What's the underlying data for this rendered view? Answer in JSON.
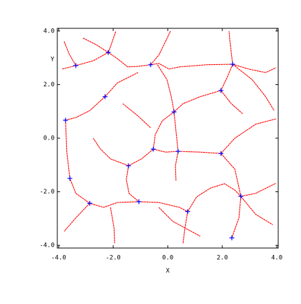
{
  "chart_data": {
    "type": "line",
    "x_label": "X",
    "y_label": "Y",
    "xlim": [
      -4.05,
      4.05
    ],
    "ylim": [
      -4.1,
      4.1
    ],
    "xticks": [
      {
        "value": -4,
        "label": "-4.0"
      },
      {
        "value": -2,
        "label": "-2.0"
      },
      {
        "value": 0,
        "label": "0.0"
      },
      {
        "value": 2,
        "label": "2.0"
      },
      {
        "value": 4,
        "label": "4.0"
      }
    ],
    "yticks": [
      {
        "value": -4,
        "label": "-4.0"
      },
      {
        "value": -2,
        "label": "-2.0"
      },
      {
        "value": 0,
        "label": "0.0"
      },
      {
        "value": 2,
        "label": "2.0"
      },
      {
        "value": 4,
        "label": "4.0"
      }
    ],
    "grid": false,
    "line_color": "#ff0000",
    "marker_color": "#0000ff",
    "curves": [
      {
        "x": [
          -3.8,
          -3.62,
          -3.37
        ],
        "y": [
          3.61,
          3.15,
          2.71
        ]
      },
      {
        "x": [
          -3.87,
          -3.37,
          -2.73,
          -2.18
        ],
        "y": [
          2.58,
          2.71,
          2.89,
          3.2
        ]
      },
      {
        "x": [
          -3.11,
          -2.61,
          -2.18
        ],
        "y": [
          3.74,
          3.48,
          3.2
        ]
      },
      {
        "x": [
          -2.18,
          -2.05,
          -1.9
        ],
        "y": [
          3.2,
          3.56,
          4.0
        ]
      },
      {
        "x": [
          -2.18,
          -1.85,
          -1.47,
          -1.09,
          -0.63
        ],
        "y": [
          3.2,
          2.97,
          2.66,
          2.68,
          2.74
        ]
      },
      {
        "x": [
          -0.63,
          -0.33,
          -0.08,
          0.1
        ],
        "y": [
          2.74,
          3.1,
          3.61,
          4.0
        ]
      },
      {
        "x": [
          -0.63,
          -0.33,
          0.05,
          0.43,
          1.44,
          2.38
        ],
        "y": [
          2.74,
          2.79,
          2.58,
          2.66,
          2.74,
          2.76
        ]
      },
      {
        "x": [
          2.38,
          2.28,
          2.25
        ],
        "y": [
          2.76,
          3.61,
          4.0
        ]
      },
      {
        "x": [
          2.38,
          2.96,
          3.59,
          3.97
        ],
        "y": [
          2.76,
          2.58,
          2.45,
          2.63
        ]
      },
      {
        "x": [
          2.38,
          2.2,
          1.95
        ],
        "y": [
          2.76,
          2.32,
          1.78
        ]
      },
      {
        "x": [
          2.38,
          3.09,
          3.59,
          3.9
        ],
        "y": [
          2.76,
          2.19,
          1.55,
          1.03
        ]
      },
      {
        "x": [
          1.95,
          1.19,
          0.56,
          0.23
        ],
        "y": [
          1.78,
          1.55,
          1.29,
          0.98
        ]
      },
      {
        "x": [
          1.95,
          2.33,
          2.76
        ],
        "y": [
          1.78,
          1.29,
          0.9
        ]
      },
      {
        "x": [
          -0.38,
          -0.03,
          0.13,
          0.23
        ],
        "y": [
          2.74,
          2.19,
          1.55,
          0.98
        ]
      },
      {
        "x": [
          0.23,
          -0.2,
          -0.46,
          -0.53
        ],
        "y": [
          0.98,
          0.65,
          0.13,
          -0.41
        ]
      },
      {
        "x": [
          0.23,
          0.3,
          0.38
        ],
        "y": [
          0.98,
          0.26,
          -0.49
        ]
      },
      {
        "x": [
          0.38,
          1.19,
          1.95
        ],
        "y": [
          -0.49,
          -0.52,
          -0.57
        ]
      },
      {
        "x": [
          -0.53,
          -0.08,
          0.38
        ],
        "y": [
          -0.41,
          -0.52,
          -0.49
        ]
      },
      {
        "x": [
          -0.53,
          -0.96,
          -1.44
        ],
        "y": [
          -0.41,
          -0.77,
          -1.03
        ]
      },
      {
        "x": [
          -1.44,
          -2.1,
          -2.48,
          -2.73
        ],
        "y": [
          -1.03,
          -0.77,
          -0.39,
          0
        ]
      },
      {
        "x": [
          -1.44,
          -1.52,
          -1.42,
          -1.06
        ],
        "y": [
          -1.03,
          -1.55,
          -2.06,
          -2.37
        ]
      },
      {
        "x": [
          -1.06,
          -1.85,
          -2.35,
          -2.86
        ],
        "y": [
          -2.37,
          -2.4,
          -2.58,
          -2.43
        ]
      },
      {
        "x": [
          -2.86,
          -3.37,
          -3.59,
          -3.7,
          -3.75
        ],
        "y": [
          -2.43,
          -2.06,
          -1.5,
          -0.52,
          0.67
        ]
      },
      {
        "x": [
          -3.75,
          -3.37,
          -2.86,
          -2.3
        ],
        "y": [
          0.67,
          0.77,
          1.03,
          1.55
        ]
      },
      {
        "x": [
          -2.3,
          -1.85,
          -1.09
        ],
        "y": [
          1.55,
          2.06,
          2.45
        ]
      },
      {
        "x": [
          -1.06,
          -0.33,
          0.43,
          0.73
        ],
        "y": [
          -2.37,
          -2.4,
          -2.58,
          -2.74
        ]
      },
      {
        "x": [
          0.73,
          0.63,
          0.56
        ],
        "y": [
          -2.74,
          -3.35,
          -3.92
        ]
      },
      {
        "x": [
          0.73,
          1.06,
          1.57,
          2.08,
          2.46,
          2.68
        ],
        "y": [
          -2.74,
          -2.19,
          -1.86,
          -1.7,
          -1.94,
          -2.17
        ]
      },
      {
        "x": [
          2.68,
          2.61,
          2.35
        ],
        "y": [
          -2.17,
          -2.97,
          -3.72
        ]
      },
      {
        "x": [
          2.68,
          3.22,
          3.97
        ],
        "y": [
          -2.17,
          -2.06,
          -1.68
        ]
      },
      {
        "x": [
          2.68,
          3.22,
          3.85
        ],
        "y": [
          -2.17,
          -2.84,
          -3.23
        ]
      },
      {
        "x": [
          1.95,
          2.46,
          2.68
        ],
        "y": [
          -0.57,
          -1.16,
          -2.17
        ]
      },
      {
        "x": [
          1.95,
          2.46,
          3.22,
          3.97
        ],
        "y": [
          -0.57,
          0,
          0.52,
          0.72
        ]
      },
      {
        "x": [
          -2.86,
          -3.37,
          -3.8
        ],
        "y": [
          -2.43,
          -2.97,
          -3.48
        ]
      },
      {
        "x": [
          -2.1,
          -1.97,
          -1.95
        ],
        "y": [
          -2.58,
          -3.35,
          -3.92
        ]
      },
      {
        "x": [
          -1.65,
          -1.09,
          -0.63
        ],
        "y": [
          1.29,
          0.83,
          0.39
        ]
      },
      {
        "x": [
          0.38,
          0.28,
          0.3
        ],
        "y": [
          -0.49,
          -1.03,
          -1.6
        ]
      },
      {
        "x": [
          -0.33,
          0.18,
          1.19
        ],
        "y": [
          -2.58,
          -3.1,
          -3.66
        ]
      }
    ],
    "points": {
      "x": [
        -3.37,
        -2.18,
        -0.63,
        2.38,
        -2.3,
        -3.75,
        1.95,
        0.23,
        -0.53,
        0.38,
        1.95,
        -1.44,
        -3.59,
        -2.86,
        -1.06,
        0.73,
        2.68,
        2.35
      ],
      "y": [
        2.71,
        3.2,
        2.74,
        2.76,
        1.55,
        0.67,
        1.78,
        0.98,
        -0.41,
        -0.49,
        -0.57,
        -1.03,
        -1.5,
        -2.43,
        -2.37,
        -2.74,
        -2.17,
        -3.72
      ]
    }
  }
}
